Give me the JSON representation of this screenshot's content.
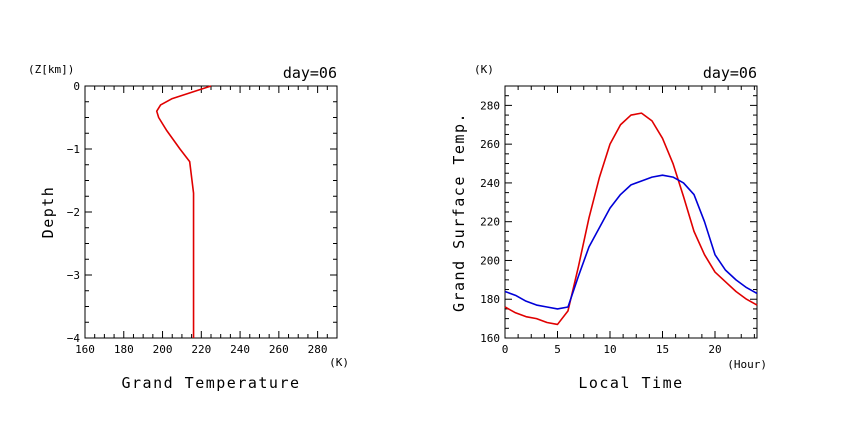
{
  "colors": {
    "red": "#e00000",
    "blue": "#0000d8",
    "axis": "#000000"
  },
  "chart_data": [
    {
      "type": "line",
      "title": "day=06",
      "xlabel": "Grand Temperature",
      "xunit": "(K)",
      "ylabel": "Depth",
      "yunit": "(Z[km])",
      "xlim": [
        160,
        290
      ],
      "ylim": [
        -4,
        0
      ],
      "xticks": [
        160,
        180,
        200,
        220,
        240,
        260,
        280
      ],
      "yticks": [
        0,
        -1,
        -2,
        -3,
        -4
      ],
      "series": [
        {
          "color": "red",
          "x": [
            225,
            205,
            199,
            197,
            198,
            202,
            209,
            214,
            216,
            216,
            216
          ],
          "y": [
            0.0,
            -0.2,
            -0.3,
            -0.4,
            -0.5,
            -0.7,
            -1.0,
            -1.2,
            -1.7,
            -3.0,
            -4.0
          ]
        }
      ]
    },
    {
      "type": "line",
      "title": "day=06",
      "xlabel": "Local Time",
      "xunit": "(Hour)",
      "ylabel": "Grand Surface Temp.",
      "yunit": "(K)",
      "xlim": [
        0,
        24
      ],
      "ylim": [
        160,
        290
      ],
      "xticks": [
        0,
        5,
        10,
        15,
        20
      ],
      "yticks": [
        160,
        180,
        200,
        220,
        240,
        260,
        280
      ],
      "series": [
        {
          "color": "red",
          "x": [
            0,
            1,
            2,
            3,
            4,
            5,
            6,
            7,
            8,
            9,
            10,
            11,
            12,
            13,
            14,
            15,
            16,
            17,
            18,
            19,
            20,
            21,
            22,
            23,
            24
          ],
          "y": [
            176,
            173,
            171,
            170,
            168,
            167,
            174,
            197,
            222,
            243,
            260,
            270,
            275,
            276,
            272,
            263,
            250,
            233,
            215,
            203,
            194,
            189,
            184,
            180,
            177
          ]
        },
        {
          "color": "blue",
          "x": [
            0,
            1,
            2,
            3,
            4,
            5,
            6,
            7,
            8,
            9,
            10,
            11,
            12,
            13,
            14,
            15,
            16,
            17,
            18,
            19,
            20,
            21,
            22,
            23,
            24
          ],
          "y": [
            184,
            182,
            179,
            177,
            176,
            175,
            176,
            192,
            207,
            217,
            227,
            234,
            239,
            241,
            243,
            244,
            243,
            240,
            234,
            220,
            203,
            195,
            190,
            186,
            183
          ]
        }
      ]
    }
  ]
}
